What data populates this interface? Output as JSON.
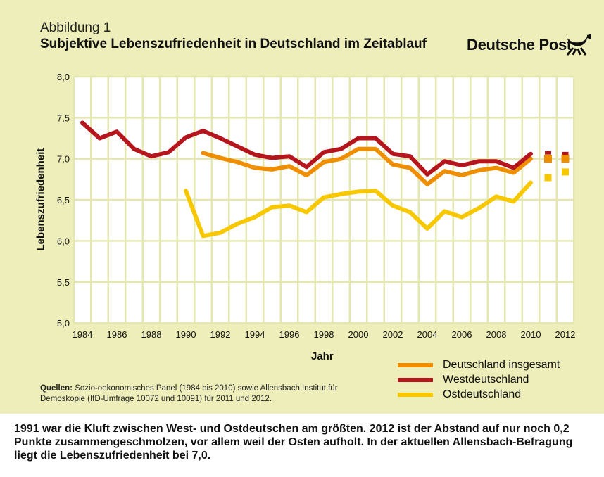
{
  "header": {
    "figure_label": "Abbildung 1",
    "title": "Subjektive Lebenszufriedenheit in Deutschland im Zeitablauf",
    "brand": "Deutsche Post",
    "logo_icon": "post-horn-icon"
  },
  "chart_data": {
    "type": "line",
    "title": "Subjektive Lebenszufriedenheit in Deutschland im Zeitablauf",
    "xlabel": "Jahr",
    "ylabel": "Lebenszufriedenheit",
    "xlim": [
      1984,
      2012
    ],
    "ylim": [
      5.0,
      8.0
    ],
    "x_ticks": [
      "1984",
      "1986",
      "1988",
      "1990",
      "1992",
      "1994",
      "1996",
      "1998",
      "2000",
      "2002",
      "2004",
      "2006",
      "2008",
      "2010",
      "2012"
    ],
    "y_ticks": [
      "5,0",
      "5,5",
      "6,0",
      "6,5",
      "7,0",
      "7,5",
      "8,0"
    ],
    "grid": true,
    "legend_position": "bottom-right",
    "series": [
      {
        "name": "Deutschland insgesamt",
        "color": "#ee8e00",
        "x": [
          1991,
          1992,
          1993,
          1994,
          1995,
          1996,
          1997,
          1998,
          1999,
          2000,
          2001,
          2002,
          2003,
          2004,
          2005,
          2006,
          2007,
          2008,
          2009,
          2010
        ],
        "values": [
          7.07,
          7.01,
          6.96,
          6.89,
          6.87,
          6.91,
          6.8,
          6.96,
          7.0,
          7.12,
          7.12,
          6.93,
          6.89,
          6.69,
          6.85,
          6.8,
          6.86,
          6.89,
          6.83,
          7.0
        ],
        "survey_points": {
          "x": [
            2011,
            2012
          ],
          "values": [
            7.0,
            7.0
          ]
        }
      },
      {
        "name": "Westdeutschland",
        "color": "#b5161e",
        "x": [
          1984,
          1985,
          1986,
          1987,
          1988,
          1989,
          1990,
          1991,
          1992,
          1993,
          1994,
          1995,
          1996,
          1997,
          1998,
          1999,
          2000,
          2001,
          2002,
          2003,
          2004,
          2005,
          2006,
          2007,
          2008,
          2009,
          2010
        ],
        "values": [
          7.44,
          7.25,
          7.33,
          7.12,
          7.03,
          7.08,
          7.26,
          7.34,
          7.25,
          7.15,
          7.05,
          7.01,
          7.03,
          6.9,
          7.08,
          7.12,
          7.25,
          7.25,
          7.06,
          7.03,
          6.81,
          6.97,
          6.92,
          6.97,
          6.97,
          6.89,
          7.06
        ],
        "survey_points": {
          "x": [
            2011,
            2012
          ],
          "values": [
            7.06,
            7.05
          ]
        }
      },
      {
        "name": "Ostdeutschland",
        "color": "#f7c800",
        "x": [
          1990,
          1991,
          1992,
          1993,
          1994,
          1995,
          1996,
          1997,
          1998,
          1999,
          2000,
          2001,
          2002,
          2003,
          2004,
          2005,
          2006,
          2007,
          2008,
          2009,
          2010
        ],
        "values": [
          6.61,
          6.06,
          6.1,
          6.21,
          6.29,
          6.41,
          6.43,
          6.35,
          6.53,
          6.57,
          6.6,
          6.61,
          6.43,
          6.35,
          6.15,
          6.36,
          6.29,
          6.4,
          6.54,
          6.48,
          6.71
        ],
        "survey_points": {
          "x": [
            2011,
            2012
          ],
          "values": [
            6.77,
            6.84
          ]
        }
      }
    ]
  },
  "sources": {
    "label": "Quellen:",
    "text": " Sozio-oekonomisches Panel (1984 bis 2010) sowie Allensbach Institut für Demoskopie (IfD-Umfrage 10072 und 10091) für 2011 und 2012."
  },
  "caption": "1991 war die Kluft zwischen West- und Ostdeutschen am größten. 2012 ist der Abstand auf nur noch 0,2 Punkte zusammengeschmolzen, vor allem weil der Osten aufholt. In der aktuellen Allensbach-Befragung liegt die Lebenszufriedenheit bei 7,0."
}
